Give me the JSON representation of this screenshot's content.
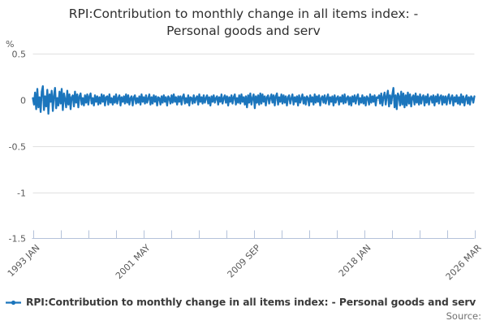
{
  "header": {
    "title_line1": "RPI:Contribution to monthly change in all items index: -",
    "title_line2": "Personal goods and serv"
  },
  "footer": {
    "legend_label": "RPI:Contribution to monthly change in all items index: - Personal goods and serv",
    "source_label": "Source:"
  },
  "colors": {
    "series_blue": "#1b75bc",
    "gridline": "#e0e0e0",
    "axis": "#b4c2da",
    "tick_text": "#595959"
  },
  "chart_data": {
    "type": "line",
    "title": "RPI:Contribution to monthly change in all items index: - Personal goods and serv",
    "xlabel": "",
    "ylabel": "%",
    "ylim": [
      -1.5,
      0.5
    ],
    "grid": "horizontal",
    "legend_position": "bottom-left",
    "frequency": "monthly",
    "x_start": "1993 JAN",
    "x_end": "2026 MAR",
    "x_tick_labels": [
      "1993 JAN",
      "2001 MAY",
      "2009 SEP",
      "2018 JAN",
      "2026 MAR"
    ],
    "minor_ticks_between_labels": 3,
    "y_ticks": [
      0.5,
      0,
      -0.5,
      -1,
      -1.5
    ],
    "y_tick_labels": [
      "0.5",
      "0",
      "-0.5",
      "-1",
      "-1.5"
    ],
    "series": [
      {
        "name": "RPI:Contribution to monthly change in all items index: - Personal goods and serv",
        "color": "#1b75bc",
        "values": [
          0.02,
          -0.05,
          0.08,
          -0.1,
          0.12,
          -0.08,
          0.03,
          -0.13,
          0.09,
          0.15,
          -0.11,
          0.04,
          -0.07,
          0.11,
          -0.15,
          0.06,
          -0.02,
          0.1,
          -0.12,
          0.05,
          0.13,
          -0.09,
          0.02,
          -0.06,
          0.09,
          -0.04,
          0.12,
          -0.11,
          0.07,
          0.01,
          -0.08,
          0.1,
          -0.05,
          0.06,
          -0.1,
          0.03,
          0.05,
          -0.07,
          0.09,
          -0.03,
          0.06,
          -0.08,
          0.04,
          0.07,
          -0.05,
          0.02,
          -0.06,
          0.05,
          -0.03,
          0.06,
          -0.05,
          0.04,
          0.07,
          -0.04,
          0.02,
          -0.06,
          0.05,
          -0.02,
          0.04,
          -0.05,
          0.03,
          -0.04,
          0.06,
          -0.02,
          0.05,
          -0.06,
          0.03,
          0.04,
          -0.05,
          0.06,
          -0.03,
          0.02,
          -0.05,
          0.04,
          -0.03,
          0.06,
          -0.04,
          0.02,
          0.05,
          -0.06,
          0.03,
          -0.02,
          0.04,
          -0.04,
          0.06,
          -0.03,
          0.05,
          -0.05,
          0.02,
          0.04,
          -0.06,
          0.03,
          0.05,
          -0.04,
          0.02,
          -0.03,
          0.04,
          -0.05,
          0.06,
          -0.02,
          0.03,
          -0.04,
          0.05,
          -0.03,
          0.02,
          0.06,
          -0.05,
          0.03,
          -0.04,
          0.05,
          -0.02,
          0.04,
          -0.06,
          0.03,
          0.02,
          -0.05,
          0.04,
          -0.03,
          0.05,
          -0.02,
          0.03,
          -0.06,
          0.04,
          0.02,
          -0.04,
          0.05,
          -0.03,
          0.06,
          -0.02,
          0.03,
          -0.05,
          0.04,
          -0.02,
          0.04,
          -0.05,
          0.03,
          0.06,
          -0.04,
          0.02,
          -0.03,
          0.05,
          -0.06,
          0.03,
          0.02,
          -0.04,
          0.05,
          -0.03,
          0.02,
          0.04,
          -0.05,
          0.06,
          -0.02,
          0.03,
          -0.04,
          0.05,
          -0.03,
          0.02,
          0.05,
          -0.04,
          0.03,
          -0.06,
          0.04,
          -0.02,
          0.05,
          -0.03,
          0.02,
          0.04,
          -0.05,
          0.03,
          -0.02,
          0.06,
          -0.04,
          0.02,
          0.05,
          -0.03,
          0.04,
          -0.06,
          0.03,
          -0.02,
          0.05,
          -0.04,
          0.03,
          0.06,
          -0.05,
          0.02,
          -0.03,
          0.05,
          -0.04,
          0.06,
          -0.02,
          0.03,
          -0.05,
          0.04,
          -0.08,
          0.05,
          -0.03,
          0.07,
          -0.05,
          0.02,
          0.06,
          -0.09,
          0.04,
          -0.03,
          0.05,
          -0.05,
          0.07,
          -0.04,
          0.06,
          -0.02,
          0.04,
          -0.06,
          0.03,
          0.05,
          -0.04,
          0.02,
          0.06,
          -0.03,
          0.05,
          -0.06,
          0.04,
          0.07,
          -0.05,
          0.03,
          -0.02,
          0.06,
          -0.04,
          0.05,
          -0.03,
          0.04,
          -0.06,
          0.03,
          0.05,
          -0.04,
          0.02,
          0.06,
          -0.05,
          0.03,
          -0.02,
          0.04,
          -0.06,
          0.05,
          -0.03,
          0.02,
          0.06,
          -0.04,
          0.03,
          -0.05,
          0.04,
          0.02,
          -0.06,
          0.05,
          -0.02,
          0.03,
          -0.05,
          0.06,
          -0.03,
          0.04,
          -0.02,
          0.05,
          -0.06,
          0.02,
          0.04,
          -0.03,
          0.05,
          -0.04,
          0.02,
          0.06,
          -0.05,
          0.03,
          -0.02,
          0.04,
          -0.06,
          0.05,
          -0.03,
          0.02,
          0.04,
          -0.05,
          0.03,
          -0.02,
          0.05,
          -0.04,
          0.06,
          -0.03,
          0.02,
          0.04,
          -0.05,
          0.03,
          -0.06,
          0.04,
          -0.02,
          0.05,
          -0.04,
          0.03,
          0.06,
          -0.05,
          0.02,
          -0.03,
          0.05,
          -0.04,
          0.03,
          -0.06,
          0.04,
          0.02,
          -0.05,
          0.06,
          -0.03,
          0.04,
          -0.02,
          0.05,
          -0.06,
          0.03,
          0.02,
          0.05,
          -0.04,
          0.07,
          -0.06,
          0.03,
          0.08,
          -0.05,
          0.04,
          0.1,
          -0.07,
          0.05,
          -0.04,
          0.06,
          0.13,
          -0.08,
          0.05,
          -0.1,
          0.07,
          0.04,
          -0.06,
          0.09,
          -0.05,
          0.07,
          -0.08,
          0.05,
          -0.06,
          0.08,
          -0.04,
          0.06,
          -0.07,
          0.03,
          0.05,
          -0.05,
          0.07,
          -0.03,
          0.04,
          -0.05,
          0.06,
          -0.04,
          0.03,
          0.05,
          -0.06,
          0.04,
          -0.03,
          0.06,
          -0.05,
          0.02,
          0.04,
          -0.03,
          0.05,
          -0.06,
          0.04,
          -0.02,
          0.06,
          -0.04,
          0.03,
          0.05,
          -0.05,
          0.04,
          -0.03,
          0.04,
          -0.05,
          0.03,
          0.06,
          -0.04,
          0.02,
          0.05,
          -0.06,
          0.03,
          -0.02,
          0.05,
          -0.04,
          0.03,
          -0.05,
          0.06,
          -0.03,
          0.04,
          -0.06,
          0.02,
          0.05,
          -0.04,
          0.03,
          -0.05,
          0.04,
          0.02,
          -0.03,
          0.04
        ]
      }
    ]
  }
}
